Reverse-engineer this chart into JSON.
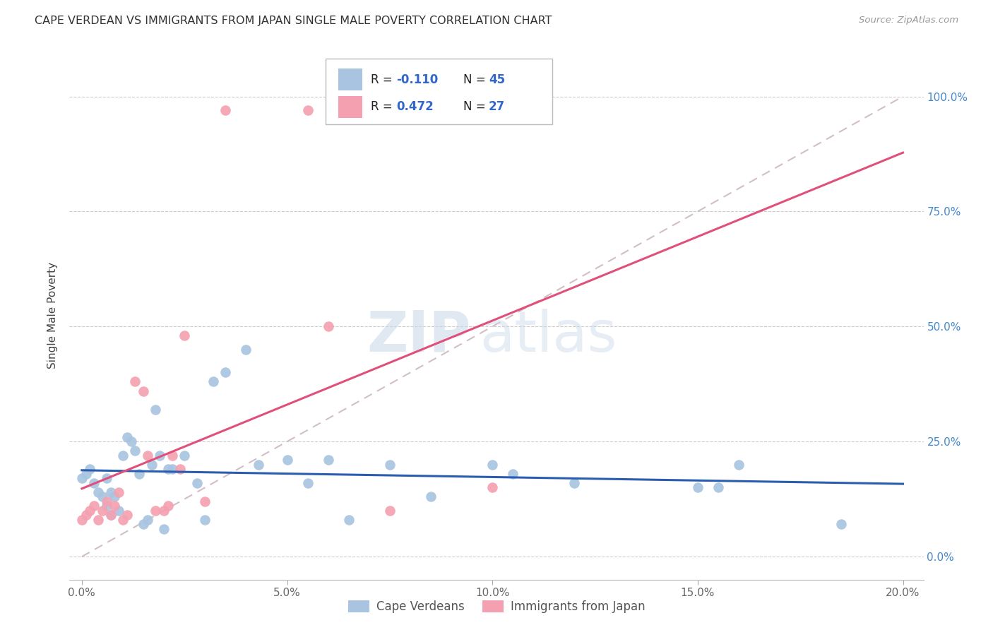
{
  "title": "CAPE VERDEAN VS IMMIGRANTS FROM JAPAN SINGLE MALE POVERTY CORRELATION CHART",
  "source": "Source: ZipAtlas.com",
  "xlabel_ticks": [
    "0.0%",
    "5.0%",
    "10.0%",
    "15.0%",
    "20.0%"
  ],
  "xlabel_vals": [
    0.0,
    0.05,
    0.1,
    0.15,
    0.2
  ],
  "ylabel_ticks": [
    "0.0%",
    "25.0%",
    "50.0%",
    "75.0%",
    "100.0%"
  ],
  "ylabel_vals": [
    0.0,
    0.25,
    0.5,
    0.75,
    1.0
  ],
  "ylabel_label": "Single Male Poverty",
  "xlim": [
    -0.003,
    0.205
  ],
  "ylim": [
    -0.05,
    1.1
  ],
  "legend_label1": "Cape Verdeans",
  "legend_label2": "Immigrants from Japan",
  "R1": "-0.110",
  "N1": "45",
  "R2": "0.472",
  "N2": "27",
  "color1": "#a8c4e0",
  "color2": "#f4a0b0",
  "line_color1": "#2a5db0",
  "line_color2": "#e0507a",
  "diag_color": "#ccb8be",
  "blue_points_x": [
    0.0,
    0.001,
    0.002,
    0.003,
    0.004,
    0.005,
    0.006,
    0.006,
    0.007,
    0.007,
    0.008,
    0.009,
    0.01,
    0.011,
    0.012,
    0.013,
    0.014,
    0.015,
    0.016,
    0.017,
    0.018,
    0.019,
    0.02,
    0.021,
    0.022,
    0.025,
    0.028,
    0.03,
    0.032,
    0.035,
    0.04,
    0.043,
    0.05,
    0.055,
    0.06,
    0.065,
    0.075,
    0.085,
    0.1,
    0.105,
    0.12,
    0.15,
    0.155,
    0.16,
    0.185
  ],
  "blue_points_y": [
    0.17,
    0.18,
    0.19,
    0.16,
    0.14,
    0.13,
    0.11,
    0.17,
    0.09,
    0.14,
    0.13,
    0.1,
    0.22,
    0.26,
    0.25,
    0.23,
    0.18,
    0.07,
    0.08,
    0.2,
    0.32,
    0.22,
    0.06,
    0.19,
    0.19,
    0.22,
    0.16,
    0.08,
    0.38,
    0.4,
    0.45,
    0.2,
    0.21,
    0.16,
    0.21,
    0.08,
    0.2,
    0.13,
    0.2,
    0.18,
    0.16,
    0.15,
    0.15,
    0.2,
    0.07
  ],
  "pink_points_x": [
    0.0,
    0.001,
    0.002,
    0.003,
    0.004,
    0.005,
    0.006,
    0.007,
    0.008,
    0.009,
    0.01,
    0.011,
    0.013,
    0.015,
    0.016,
    0.018,
    0.02,
    0.021,
    0.022,
    0.024,
    0.025,
    0.03,
    0.035,
    0.055,
    0.06,
    0.075,
    0.1
  ],
  "pink_points_y": [
    0.08,
    0.09,
    0.1,
    0.11,
    0.08,
    0.1,
    0.12,
    0.09,
    0.11,
    0.14,
    0.08,
    0.09,
    0.38,
    0.36,
    0.22,
    0.1,
    0.1,
    0.11,
    0.22,
    0.19,
    0.48,
    0.12,
    0.97,
    0.97,
    0.5,
    0.1,
    0.15
  ],
  "watermark_zip": "ZIP",
  "watermark_atlas": "atlas",
  "background_color": "#ffffff",
  "grid_color": "#cccccc"
}
